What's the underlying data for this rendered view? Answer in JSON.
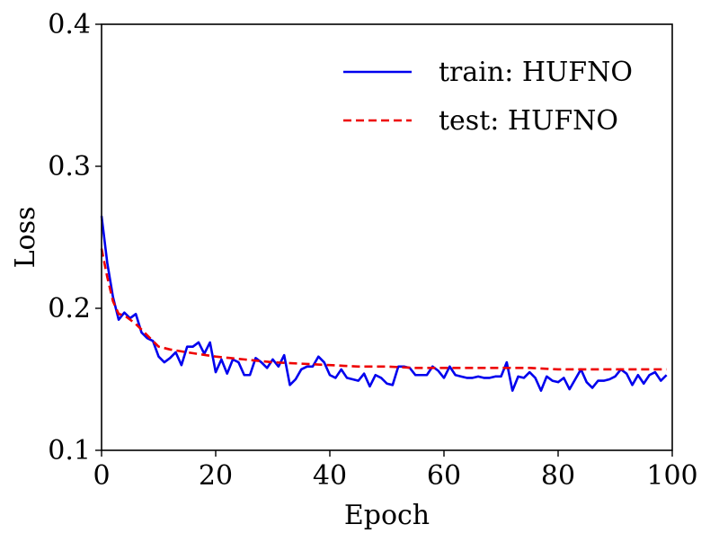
{
  "chart_data": {
    "type": "line",
    "title": "",
    "xlabel": "Epoch",
    "ylabel": "Loss",
    "xlim": [
      0,
      100
    ],
    "ylim": [
      0.1,
      0.4
    ],
    "xticks": [
      0,
      20,
      40,
      60,
      80,
      100
    ],
    "xtick_labels": [
      "0",
      "20",
      "40",
      "60",
      "80",
      "100"
    ],
    "yticks": [
      0.1,
      0.2,
      0.3,
      0.4
    ],
    "ytick_labels": [
      "0.1",
      "0.2",
      "0.3",
      "0.4"
    ],
    "grid": false,
    "legend_position": "top-right",
    "series": [
      {
        "name": "train: HUFNO",
        "color": "#0000ee",
        "style": "solid",
        "x": [
          0,
          1,
          2,
          3,
          4,
          5,
          6,
          7,
          8,
          9,
          10,
          11,
          12,
          13,
          14,
          15,
          16,
          17,
          18,
          19,
          20,
          21,
          22,
          23,
          24,
          25,
          26,
          27,
          28,
          29,
          30,
          31,
          32,
          33,
          34,
          35,
          36,
          37,
          38,
          39,
          40,
          41,
          42,
          43,
          44,
          45,
          46,
          47,
          48,
          49,
          50,
          51,
          52,
          53,
          54,
          55,
          56,
          57,
          58,
          59,
          60,
          61,
          62,
          63,
          64,
          65,
          66,
          67,
          68,
          69,
          70,
          71,
          72,
          73,
          74,
          75,
          76,
          77,
          78,
          79,
          80,
          81,
          82,
          83,
          84,
          85,
          86,
          87,
          88,
          89,
          90,
          91,
          92,
          93,
          94,
          95,
          96,
          97,
          98,
          99
        ],
        "y": [
          0.265,
          0.232,
          0.208,
          0.192,
          0.197,
          0.193,
          0.196,
          0.183,
          0.179,
          0.177,
          0.166,
          0.162,
          0.165,
          0.169,
          0.16,
          0.173,
          0.173,
          0.176,
          0.168,
          0.176,
          0.155,
          0.164,
          0.154,
          0.164,
          0.162,
          0.153,
          0.153,
          0.165,
          0.162,
          0.158,
          0.164,
          0.159,
          0.167,
          0.146,
          0.15,
          0.157,
          0.159,
          0.159,
          0.166,
          0.162,
          0.153,
          0.151,
          0.157,
          0.151,
          0.15,
          0.149,
          0.154,
          0.145,
          0.153,
          0.151,
          0.147,
          0.146,
          0.159,
          0.159,
          0.158,
          0.153,
          0.153,
          0.153,
          0.159,
          0.156,
          0.151,
          0.159,
          0.153,
          0.152,
          0.151,
          0.151,
          0.152,
          0.151,
          0.151,
          0.152,
          0.152,
          0.162,
          0.142,
          0.152,
          0.151,
          0.155,
          0.151,
          0.142,
          0.152,
          0.149,
          0.148,
          0.151,
          0.143,
          0.15,
          0.157,
          0.148,
          0.144,
          0.149,
          0.149,
          0.15,
          0.152,
          0.157,
          0.154,
          0.146,
          0.153,
          0.147,
          0.153,
          0.155,
          0.149,
          0.153
        ]
      },
      {
        "name": "test: HUFNO",
        "color": "#ee0000",
        "style": "dashed",
        "x": [
          0,
          1,
          2,
          3,
          4,
          5,
          6,
          7,
          8,
          9,
          10,
          12,
          15,
          20,
          25,
          30,
          35,
          40,
          45,
          50,
          55,
          60,
          65,
          70,
          75,
          80,
          85,
          90,
          95,
          99
        ],
        "y": [
          0.242,
          0.222,
          0.205,
          0.196,
          0.195,
          0.192,
          0.189,
          0.185,
          0.181,
          0.177,
          0.173,
          0.171,
          0.169,
          0.166,
          0.164,
          0.162,
          0.161,
          0.16,
          0.159,
          0.159,
          0.158,
          0.158,
          0.158,
          0.158,
          0.158,
          0.157,
          0.157,
          0.157,
          0.157,
          0.157
        ]
      }
    ]
  }
}
